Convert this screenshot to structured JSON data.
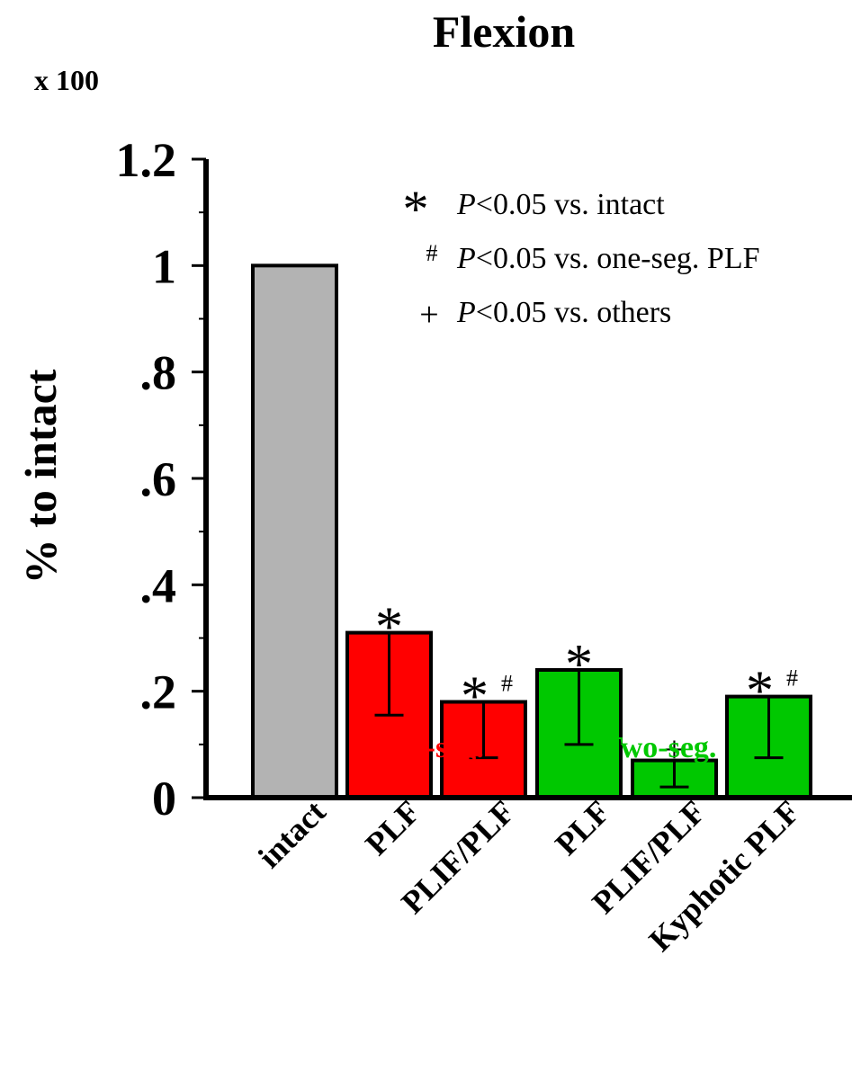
{
  "chart_data": {
    "type": "bar",
    "title": "Flexion",
    "multiplier_label": "x 100",
    "ylabel": "% to intact",
    "ylim": [
      0,
      1.2
    ],
    "yticks": [
      {
        "value": 0,
        "label": "0"
      },
      {
        "value": 0.2,
        "label": ".2"
      },
      {
        "value": 0.4,
        "label": ".4"
      },
      {
        "value": 0.6,
        "label": ".6"
      },
      {
        "value": 0.8,
        "label": ".8"
      },
      {
        "value": 1.0,
        "label": "1"
      },
      {
        "value": 1.2,
        "label": "1.2"
      }
    ],
    "categories": [
      "intact",
      "PLF",
      "PLIF/PLF",
      "PLF",
      "PLIF/PLF",
      "Kyphotic PLF"
    ],
    "values": [
      1.0,
      0.31,
      0.18,
      0.24,
      0.07,
      0.19
    ],
    "error_low": [
      null,
      0.155,
      0.075,
      0.1,
      0.02,
      0.075
    ],
    "bar_colors": [
      "#b3b3b3",
      "#ff0000",
      "#ff0000",
      "#00c800",
      "#00c800",
      "#00c800"
    ],
    "significance": [
      "",
      "*",
      "*#",
      "*",
      "+",
      "*#"
    ],
    "groups": [
      {
        "label": "One-seg.",
        "color": "#ff0000"
      },
      {
        "label": "Two-seg.",
        "color": "#00c800"
      }
    ],
    "legend": [
      {
        "symbol": "*",
        "p": "P",
        "text": "<0.05 vs. intact"
      },
      {
        "symbol": "#",
        "p": "P",
        "text": "<0.05 vs. one-seg. PLF"
      },
      {
        "symbol": "+",
        "p": "P",
        "text": "<0.05 vs. others"
      }
    ]
  }
}
